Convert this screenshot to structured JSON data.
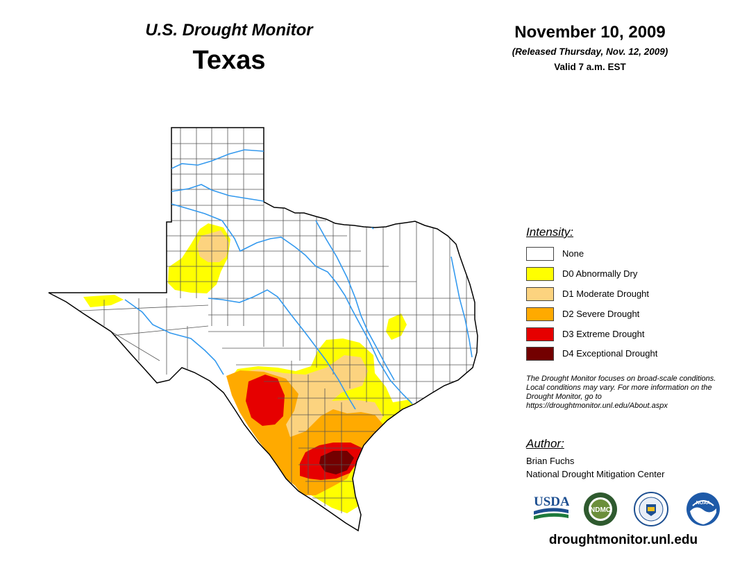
{
  "header": {
    "product": "U.S. Drought Monitor",
    "region": "Texas",
    "date": "November 10, 2009",
    "released": "(Released Thursday, Nov. 12, 2009)",
    "valid": "Valid 7 a.m. EST"
  },
  "legend": {
    "title": "Intensity:",
    "items": [
      {
        "label": "None",
        "color": "#ffffff"
      },
      {
        "label": "D0 Abnormally Dry",
        "color": "#ffff00"
      },
      {
        "label": "D1 Moderate Drought",
        "color": "#fcd37f"
      },
      {
        "label": "D2 Severe Drought",
        "color": "#ffaa00"
      },
      {
        "label": "D3 Extreme Drought",
        "color": "#e60000"
      },
      {
        "label": "D4 Exceptional Drought",
        "color": "#730000"
      }
    ]
  },
  "note": "The Drought Monitor focuses on broad-scale conditions. Local conditions may vary. For more information on the Drought Monitor, go to https://droughtmonitor.unl.edu/About.aspx",
  "author": {
    "title": "Author:",
    "name": "Brian Fuchs",
    "org": "National Drought Mitigation Center"
  },
  "logos": [
    {
      "name": "usda-logo",
      "text": "USDA"
    },
    {
      "name": "ndmc-logo",
      "text": "NDMC"
    },
    {
      "name": "doc-seal-logo",
      "text": ""
    },
    {
      "name": "noaa-logo",
      "text": "NOAA"
    }
  ],
  "site": "droughtmonitor.unl.edu",
  "colors": {
    "river": "#3399ee",
    "border": "#000000",
    "county_line": "#555555"
  }
}
